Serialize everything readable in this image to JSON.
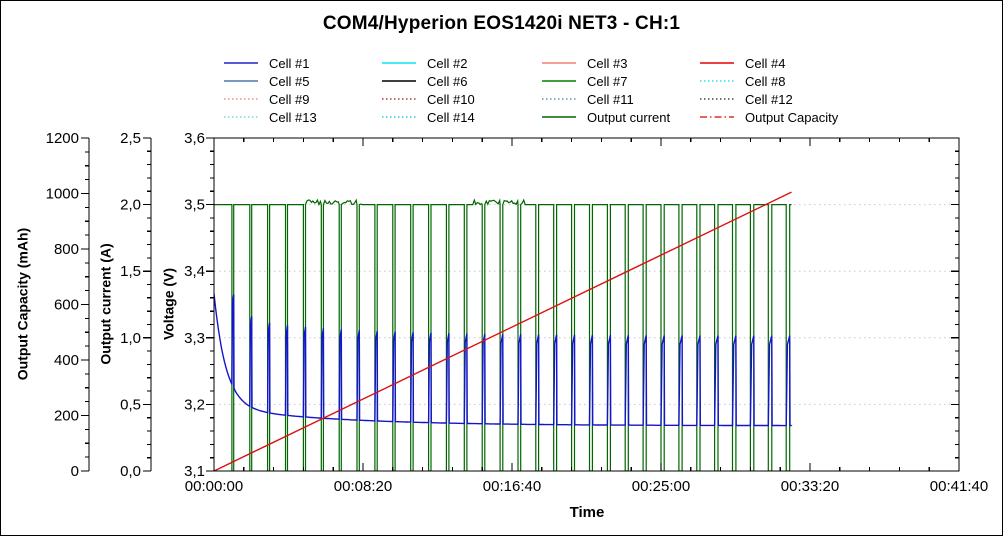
{
  "chart_data": {
    "type": "line",
    "title": "COM4/Hyperion EOS1420i NET3 - CH:1",
    "xlabel": "Time",
    "x_axis": {
      "label": "Time",
      "min_s": 0,
      "max_s": 2500,
      "major_s": 500,
      "minor_s": 100,
      "tick_labels": [
        "00:00:00",
        "00:08:20",
        "00:16:40",
        "00:25:00",
        "00:33:20",
        "00:41:40"
      ]
    },
    "axes": [
      {
        "id": "capacity",
        "label": "Output Capacity (mAh)",
        "min": 0,
        "max": 1200,
        "major": 200,
        "minor": 50,
        "tick_labels": [
          "0",
          "200",
          "400",
          "600",
          "800",
          "1000",
          "1200"
        ]
      },
      {
        "id": "current",
        "label": "Output current (A)",
        "min": 0,
        "max": 2.5,
        "major": 0.5,
        "minor": 0.1,
        "tick_labels": [
          "0,0",
          "0,5",
          "1,0",
          "1,5",
          "2,0",
          "2,5"
        ]
      },
      {
        "id": "voltage",
        "label": "Voltage (V)",
        "min": 3.1,
        "max": 3.6,
        "major": 0.1,
        "minor": 0.02,
        "tick_labels": [
          "3,1",
          "3,2",
          "3,3",
          "3,4",
          "3,5",
          "3,6"
        ]
      }
    ],
    "grid": {
      "horizontal_at_voltage": [
        3.2,
        3.3,
        3.4,
        3.5
      ],
      "color": "#C9C9C9",
      "style": "dotted"
    },
    "legend": [
      {
        "label": "Cell #1",
        "color": "#2424C8",
        "style": "solid"
      },
      {
        "label": "Cell #2",
        "color": "#00E8F0",
        "style": "solid"
      },
      {
        "label": "Cell #3",
        "color": "#F28070",
        "style": "solid"
      },
      {
        "label": "Cell #4",
        "color": "#E80000",
        "style": "solid"
      },
      {
        "label": "Cell #5",
        "color": "#4A78A8",
        "style": "solid"
      },
      {
        "label": "Cell #6",
        "color": "#000000",
        "style": "solid"
      },
      {
        "label": "Cell #7",
        "color": "#008000",
        "style": "solid"
      },
      {
        "label": "Cell #8",
        "color": "#00D8E8",
        "style": "dotted"
      },
      {
        "label": "Cell #9",
        "color": "#E87868",
        "style": "dotted"
      },
      {
        "label": "Cell #10",
        "color": "#A01010",
        "style": "dotted"
      },
      {
        "label": "Cell #11",
        "color": "#4A78A8",
        "style": "dotted"
      },
      {
        "label": "Cell #12",
        "color": "#282828",
        "style": "dotted"
      },
      {
        "label": "Cell #13",
        "color": "#60D0D0",
        "style": "dotted"
      },
      {
        "label": "Cell #14",
        "color": "#00C0D8",
        "style": "dotted"
      },
      {
        "label": "Output current",
        "color": "#006600",
        "style": "solid"
      },
      {
        "label": "Output Capacity",
        "color": "#E00000",
        "style": "dashdot"
      }
    ],
    "series": {
      "output_current": {
        "name": "Output current",
        "color": "#006600",
        "axis": "current",
        "discharge_A": 2.0,
        "rest_A": 0.0,
        "cycle_s": 60,
        "first_rest_s": 60,
        "rest_min_s": 6,
        "rest_max_s": 12,
        "end_s": 1938,
        "noise_regions_s": [
          [
            310,
            495
          ],
          [
            870,
            1040
          ]
        ],
        "noise_max_A": 0.035
      },
      "cell1_voltage": {
        "name": "Cell #1",
        "color": "#1414CC",
        "axis": "voltage",
        "start_V": 3.366,
        "end_V": 3.168,
        "v_floor": 3.168,
        "decay1_amp": 0.17,
        "decay1_tau_s": 40,
        "decay2_amp": 0.028,
        "decay2_tau_s": 400,
        "recovery_V": 0.135
      },
      "output_capacity": {
        "name": "Output Capacity",
        "color": "#DD1111",
        "axis": "capacity",
        "start_mAh": 0,
        "end_mAh": 1005,
        "end_s": 1938
      }
    }
  }
}
